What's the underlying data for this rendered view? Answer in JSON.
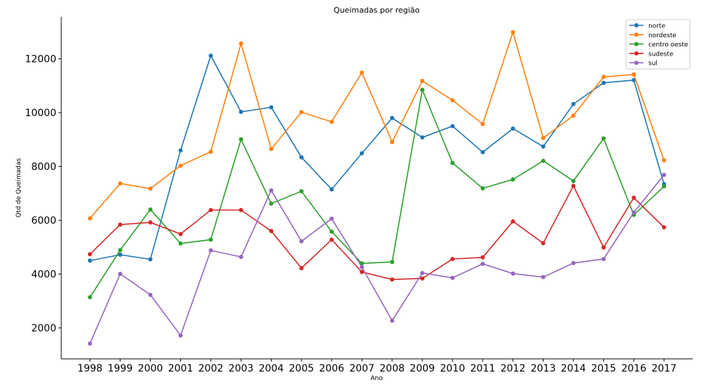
{
  "chart_data": {
    "type": "line",
    "title": "Queimadas por região",
    "xlabel": "Ano",
    "ylabel": "Qtd de Queimadas",
    "x": [
      1998,
      1999,
      2000,
      2001,
      2002,
      2003,
      2004,
      2005,
      2006,
      2007,
      2008,
      2009,
      2010,
      2011,
      2012,
      2013,
      2014,
      2015,
      2016,
      2017
    ],
    "xlim": [
      1997.05,
      2017.95
    ],
    "ylim": [
      850,
      13560
    ],
    "yticks": [
      2000,
      4000,
      6000,
      8000,
      10000,
      12000
    ],
    "grid": false,
    "legend_position": "top-right",
    "series": [
      {
        "name": "norte",
        "color": "#1f77b4",
        "values": [
          4500,
          4720,
          4550,
          8600,
          12120,
          10030,
          10200,
          8340,
          7150,
          8490,
          9800,
          9080,
          9500,
          8530,
          9410,
          8740,
          10320,
          11110,
          11210,
          7340
        ]
      },
      {
        "name": "nordeste",
        "color": "#ff7f0e",
        "values": [
          6070,
          7370,
          7180,
          8030,
          8550,
          12570,
          8650,
          10020,
          9660,
          11490,
          8910,
          11180,
          10460,
          9580,
          12990,
          9060,
          9890,
          11330,
          11420,
          8230
        ]
      },
      {
        "name": "centro oeste",
        "color": "#2ca02c",
        "values": [
          3140,
          4890,
          6400,
          5140,
          5280,
          9010,
          6620,
          7080,
          5580,
          4400,
          4450,
          10850,
          8130,
          7190,
          7520,
          8210,
          7460,
          9040,
          6200,
          7260
        ]
      },
      {
        "name": "sudeste",
        "color": "#d62728",
        "values": [
          4740,
          5840,
          5920,
          5490,
          6380,
          6380,
          5600,
          4220,
          5280,
          4080,
          3800,
          3840,
          4560,
          4620,
          5960,
          5150,
          7280,
          4990,
          6840,
          5740
        ]
      },
      {
        "name": "sul",
        "color": "#9467bd",
        "values": [
          1420,
          4010,
          3230,
          1720,
          4880,
          4640,
          7110,
          5220,
          6060,
          4260,
          2270,
          4040,
          3860,
          4380,
          4020,
          3890,
          4410,
          4560,
          6290,
          7690
        ]
      }
    ]
  }
}
